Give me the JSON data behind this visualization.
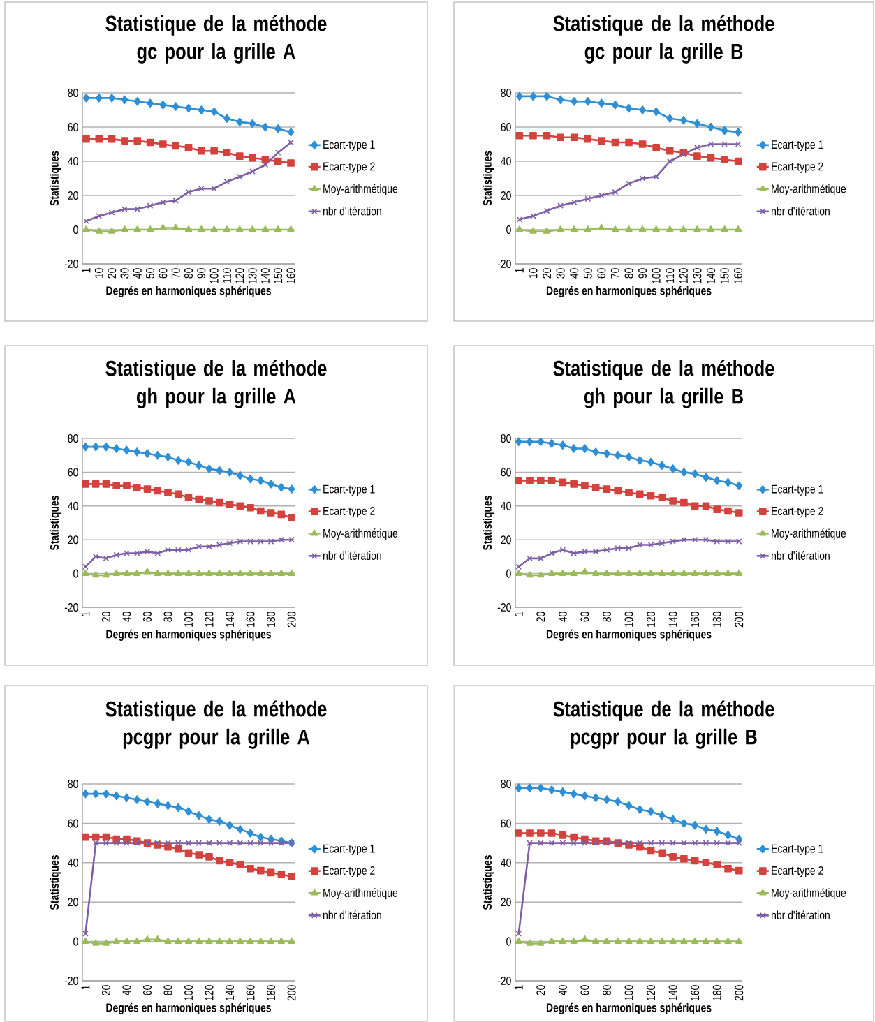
{
  "chart_data": [
    {
      "type": "line",
      "title": "Statistique de la méthode gc pour la grille A",
      "xlabel": "Degrés en harmoniques sphériques",
      "ylabel": "Statistiques",
      "categories": [
        "1",
        "10",
        "20",
        "30",
        "40",
        "50",
        "60",
        "70",
        "80",
        "90",
        "100",
        "110",
        "120",
        "130",
        "140",
        "150",
        "160"
      ],
      "ylim": [
        -20,
        80
      ],
      "yticks": [
        -20,
        0,
        20,
        40,
        60,
        80
      ],
      "grid": "y",
      "legend": "right",
      "series": [
        {
          "name": "Ecart-type 1",
          "color": "#2f8fd5",
          "marker": "diamond",
          "values": [
            77,
            77,
            77,
            76,
            75,
            74,
            73,
            72,
            71,
            70,
            69,
            65,
            63,
            62,
            60,
            59,
            57
          ]
        },
        {
          "name": "Ecart-type 2",
          "color": "#d4423e",
          "marker": "square",
          "values": [
            53,
            53,
            53,
            52,
            52,
            51,
            50,
            49,
            48,
            46,
            46,
            45,
            43,
            42,
            41,
            40,
            39
          ]
        },
        {
          "name": "Moy-arithmétique",
          "color": "#9bbb59",
          "marker": "triangle",
          "values": [
            0,
            -1,
            -1,
            0,
            0,
            0,
            1,
            1,
            0,
            0,
            0,
            0,
            0,
            0,
            0,
            0,
            0
          ]
        },
        {
          "name": "nbr d'itération",
          "color": "#7e5fa5",
          "marker": "cross",
          "values": [
            5,
            8,
            10,
            12,
            12,
            14,
            16,
            17,
            22,
            24,
            24,
            28,
            31,
            34,
            38,
            45,
            51
          ]
        }
      ]
    },
    {
      "type": "line",
      "title": "Statistique de la méthode gc pour la grille B",
      "xlabel": "Degrés en harmoniques sphériques",
      "ylabel": "Statistiques",
      "categories": [
        "1",
        "10",
        "20",
        "30",
        "40",
        "50",
        "60",
        "70",
        "80",
        "90",
        "100",
        "110",
        "120",
        "130",
        "140",
        "150",
        "160"
      ],
      "ylim": [
        -20,
        80
      ],
      "yticks": [
        -20,
        0,
        20,
        40,
        60,
        80
      ],
      "grid": "y",
      "legend": "right",
      "series": [
        {
          "name": "Ecart-type 1",
          "color": "#2f8fd5",
          "marker": "diamond",
          "values": [
            78,
            78,
            78,
            76,
            75,
            75,
            74,
            73,
            71,
            70,
            69,
            65,
            64,
            62,
            60,
            58,
            57
          ]
        },
        {
          "name": "Ecart-type 2",
          "color": "#d4423e",
          "marker": "square",
          "values": [
            55,
            55,
            55,
            54,
            54,
            53,
            52,
            51,
            51,
            50,
            48,
            46,
            45,
            43,
            42,
            41,
            40
          ]
        },
        {
          "name": "Moy-arithmétique",
          "color": "#9bbb59",
          "marker": "triangle",
          "values": [
            0,
            -1,
            -1,
            0,
            0,
            0,
            1,
            0,
            0,
            0,
            0,
            0,
            0,
            0,
            0,
            0,
            0
          ]
        },
        {
          "name": "nbr d'itération",
          "color": "#7e5fa5",
          "marker": "cross",
          "values": [
            6,
            8,
            11,
            14,
            16,
            18,
            20,
            22,
            27,
            30,
            31,
            40,
            44,
            48,
            50,
            50,
            50
          ]
        }
      ]
    },
    {
      "type": "line",
      "title": "Statistique de la méthode gh pour la grille A",
      "xlabel": "Degrés en harmoniques sphériques",
      "ylabel": "Statistiques",
      "categories": [
        "1",
        null,
        "20",
        null,
        "40",
        null,
        "60",
        null,
        "80",
        null,
        "100",
        null,
        "120",
        null,
        "140",
        null,
        "160",
        null,
        "180",
        null,
        "200"
      ],
      "ylim": [
        -20,
        80
      ],
      "yticks": [
        -20,
        0,
        20,
        40,
        60,
        80
      ],
      "grid": "y",
      "legend": "right",
      "series": [
        {
          "name": "Ecart-type 1",
          "color": "#2f8fd5",
          "marker": "diamond",
          "values": [
            75,
            75,
            75,
            74,
            73,
            72,
            71,
            70,
            69,
            67,
            66,
            64,
            62,
            61,
            60,
            58,
            56,
            55,
            53,
            51,
            50
          ]
        },
        {
          "name": "Ecart-type 2",
          "color": "#d4423e",
          "marker": "square",
          "values": [
            53,
            53,
            53,
            52,
            52,
            51,
            50,
            49,
            48,
            47,
            45,
            44,
            43,
            42,
            41,
            40,
            39,
            37,
            36,
            35,
            33
          ]
        },
        {
          "name": "Moy-arithmétique",
          "color": "#9bbb59",
          "marker": "triangle",
          "values": [
            0,
            -1,
            -1,
            0,
            0,
            0,
            1,
            0,
            0,
            0,
            0,
            0,
            0,
            0,
            0,
            0,
            0,
            0,
            0,
            0,
            0
          ]
        },
        {
          "name": "nbr d'itération",
          "color": "#7e5fa5",
          "marker": "cross",
          "values": [
            4,
            10,
            9,
            11,
            12,
            12,
            13,
            12,
            14,
            14,
            14,
            16,
            16,
            17,
            18,
            19,
            19,
            19,
            19,
            20,
            20
          ]
        }
      ]
    },
    {
      "type": "line",
      "title": "Statistique de la méthode gh pour la grille B",
      "xlabel": "Degrés en harmoniques sphériques",
      "ylabel": "Statistiques",
      "categories": [
        "1",
        null,
        "20",
        null,
        "40",
        null,
        "60",
        null,
        "80",
        null,
        "100",
        null,
        "120",
        null,
        "140",
        null,
        "160",
        null,
        "180",
        null,
        "200"
      ],
      "ylim": [
        -20,
        80
      ],
      "yticks": [
        -20,
        0,
        20,
        40,
        60,
        80
      ],
      "grid": "y",
      "legend": "right",
      "series": [
        {
          "name": "Ecart-type 1",
          "color": "#2f8fd5",
          "marker": "diamond",
          "values": [
            78,
            78,
            78,
            77,
            76,
            74,
            74,
            72,
            71,
            70,
            69,
            67,
            66,
            64,
            62,
            60,
            59,
            57,
            55,
            54,
            52
          ]
        },
        {
          "name": "Ecart-type 2",
          "color": "#d4423e",
          "marker": "square",
          "values": [
            55,
            55,
            55,
            55,
            54,
            53,
            52,
            51,
            50,
            49,
            48,
            47,
            46,
            45,
            43,
            42,
            40,
            40,
            38,
            37,
            36
          ]
        },
        {
          "name": "Moy-arithmétique",
          "color": "#9bbb59",
          "marker": "triangle",
          "values": [
            0,
            -1,
            -1,
            0,
            0,
            0,
            1,
            0,
            0,
            0,
            0,
            0,
            0,
            0,
            0,
            0,
            0,
            0,
            0,
            0,
            0
          ]
        },
        {
          "name": "nbr d'itération",
          "color": "#7e5fa5",
          "marker": "cross",
          "values": [
            4,
            9,
            9,
            12,
            14,
            12,
            13,
            13,
            14,
            15,
            15,
            17,
            17,
            18,
            19,
            20,
            20,
            20,
            19,
            19,
            19
          ]
        }
      ]
    },
    {
      "type": "line",
      "title": "Statistique de la méthode pcgpr pour la grille A",
      "xlabel": "Degrés en harmoniques sphériques",
      "ylabel": "Statistiques",
      "categories": [
        "1",
        null,
        "20",
        null,
        "40",
        null,
        "60",
        null,
        "80",
        null,
        "100",
        null,
        "120",
        null,
        "140",
        null,
        "160",
        null,
        "180",
        null,
        "200"
      ],
      "ylim": [
        -20,
        80
      ],
      "yticks": [
        -20,
        0,
        20,
        40,
        60,
        80
      ],
      "grid": "y",
      "legend": "right",
      "series": [
        {
          "name": "Ecart-type 1",
          "color": "#2f8fd5",
          "marker": "diamond",
          "values": [
            75,
            75,
            75,
            74,
            73,
            72,
            71,
            70,
            69,
            68,
            66,
            64,
            62,
            61,
            59,
            57,
            55,
            53,
            52,
            51,
            50
          ]
        },
        {
          "name": "Ecart-type 2",
          "color": "#d4423e",
          "marker": "square",
          "values": [
            53,
            53,
            53,
            52,
            52,
            51,
            50,
            49,
            48,
            47,
            45,
            44,
            43,
            41,
            40,
            39,
            37,
            36,
            35,
            34,
            33
          ]
        },
        {
          "name": "Moy-arithmétique",
          "color": "#9bbb59",
          "marker": "triangle",
          "values": [
            0,
            -1,
            -1,
            0,
            0,
            0,
            1,
            1,
            0,
            0,
            0,
            0,
            0,
            0,
            0,
            0,
            0,
            0,
            0,
            0,
            0
          ]
        },
        {
          "name": "nbr d'itération",
          "color": "#7e5fa5",
          "marker": "cross",
          "values": [
            4,
            50,
            50,
            50,
            50,
            50,
            50,
            50,
            50,
            50,
            50,
            50,
            50,
            50,
            50,
            50,
            50,
            50,
            50,
            50,
            50
          ]
        }
      ]
    },
    {
      "type": "line",
      "title": "Statistique de la méthode pcgpr pour la grille B",
      "xlabel": "Degrés en harmoniques sphériques",
      "ylabel": "Statistiques",
      "categories": [
        "1",
        null,
        "20",
        null,
        "40",
        null,
        "60",
        null,
        "80",
        null,
        "100",
        null,
        "120",
        null,
        "140",
        null,
        "160",
        null,
        "180",
        null,
        "200"
      ],
      "ylim": [
        -20,
        80
      ],
      "yticks": [
        -20,
        0,
        20,
        40,
        60,
        80
      ],
      "grid": "y",
      "legend": "right",
      "series": [
        {
          "name": "Ecart-type 1",
          "color": "#2f8fd5",
          "marker": "diamond",
          "values": [
            78,
            78,
            78,
            77,
            76,
            75,
            74,
            73,
            72,
            71,
            69,
            67,
            66,
            64,
            62,
            60,
            59,
            57,
            56,
            54,
            52
          ]
        },
        {
          "name": "Ecart-type 2",
          "color": "#d4423e",
          "marker": "square",
          "values": [
            55,
            55,
            55,
            55,
            54,
            53,
            52,
            51,
            51,
            50,
            49,
            48,
            46,
            45,
            43,
            42,
            41,
            40,
            39,
            37,
            36
          ]
        },
        {
          "name": "Moy-arithmétique",
          "color": "#9bbb59",
          "marker": "triangle",
          "values": [
            0,
            -1,
            -1,
            0,
            0,
            0,
            1,
            0,
            0,
            0,
            0,
            0,
            0,
            0,
            0,
            0,
            0,
            0,
            0,
            0,
            0
          ]
        },
        {
          "name": "nbr d'itération",
          "color": "#7e5fa5",
          "marker": "cross",
          "values": [
            4,
            50,
            50,
            50,
            50,
            50,
            50,
            50,
            50,
            50,
            50,
            50,
            50,
            50,
            50,
            50,
            50,
            50,
            50,
            50,
            50
          ]
        }
      ]
    }
  ]
}
